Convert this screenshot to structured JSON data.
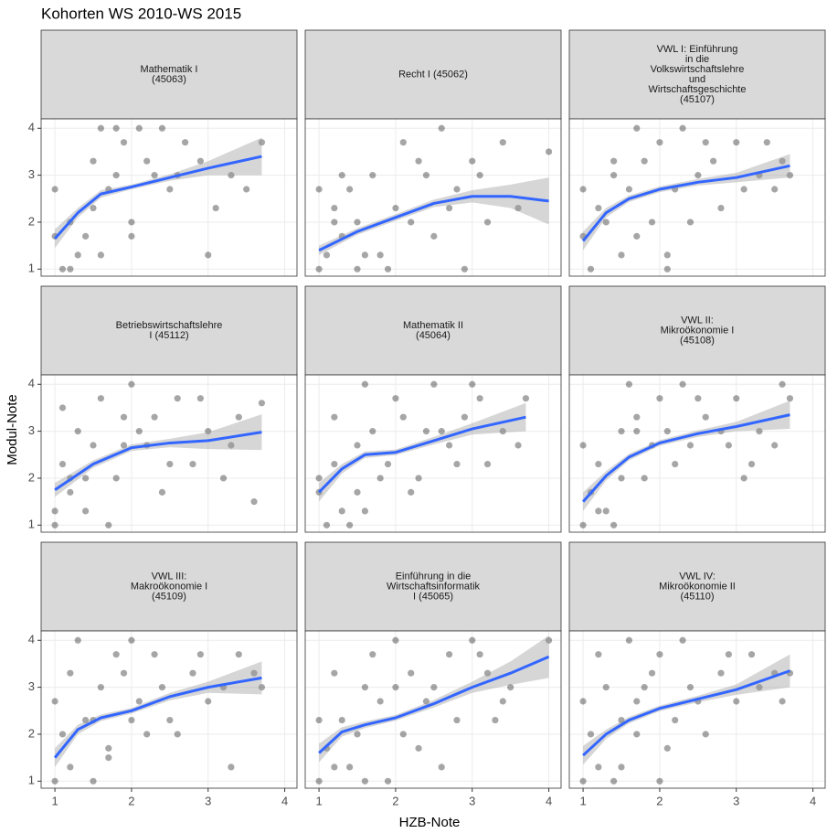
{
  "title": "Kohorten WS 2010-WS 2015",
  "x_label": "HZB-Note",
  "y_label": "Modul-Note",
  "chart_data": [
    {
      "type": "scatter",
      "title_lines": [
        "Mathematik I",
        "(45063)"
      ],
      "xlim": [
        0.82,
        4.16
      ],
      "ylim": [
        0.85,
        4.2
      ],
      "xticks": [
        1,
        2,
        3,
        4
      ],
      "yticks": [
        1,
        2,
        3,
        4
      ],
      "points": {
        "x": [
          1,
          1.1,
          1.2,
          1.3,
          1.5,
          1.6,
          1.7,
          1.8,
          1.9,
          2,
          2.1,
          2.2,
          2.3,
          2.5,
          2.7,
          2.9,
          3.1,
          3.3,
          3.5,
          3.7,
          1.2,
          1.4,
          1.6,
          2.4,
          3,
          1,
          1.5,
          2,
          1.8,
          2.6
        ],
        "y": [
          1.7,
          1,
          2,
          1.3,
          2.3,
          4,
          2.7,
          3,
          3.7,
          2,
          4,
          3.3,
          3,
          2.7,
          3.7,
          3.3,
          2.3,
          3,
          2.7,
          3.7,
          1,
          1.7,
          1.3,
          4,
          1.3,
          2.7,
          3.3,
          1.7,
          4,
          3
        ]
      },
      "smooth": {
        "x": [
          1,
          1.3,
          1.6,
          2,
          2.5,
          3,
          3.7
        ],
        "y": [
          1.65,
          2.2,
          2.6,
          2.75,
          2.95,
          3.15,
          3.4
        ],
        "lower": [
          1.45,
          2.1,
          2.52,
          2.7,
          2.88,
          3.0,
          3.0
        ],
        "upper": [
          1.85,
          2.3,
          2.68,
          2.8,
          3.02,
          3.3,
          3.8
        ],
        "color": "#3366ff"
      }
    },
    {
      "type": "scatter",
      "title_lines": [
        "Recht I (45062)"
      ],
      "xlim": [
        0.82,
        4.16
      ],
      "ylim": [
        0.85,
        4.2
      ],
      "xticks": [
        1,
        2,
        3,
        4
      ],
      "yticks": [
        1,
        2,
        3,
        4
      ],
      "points": {
        "x": [
          1,
          1.1,
          1.2,
          1.3,
          1.4,
          1.5,
          1.7,
          1.8,
          2,
          2.1,
          2.2,
          2.4,
          2.5,
          2.6,
          2.8,
          3,
          3.2,
          3.4,
          3.6,
          4,
          1.2,
          1.6,
          1.9,
          2.3,
          2.7,
          1,
          1.5,
          2.9,
          3.1,
          1.3
        ],
        "y": [
          1,
          1.3,
          2,
          1.7,
          2.7,
          1,
          3,
          1.3,
          2.3,
          3.7,
          2,
          3,
          1.7,
          4,
          2.7,
          3.3,
          2,
          3.7,
          2.3,
          3.5,
          2.3,
          1.3,
          1,
          3.3,
          2.3,
          2.7,
          2,
          1,
          3,
          3
        ]
      },
      "smooth": {
        "x": [
          1,
          1.5,
          2,
          2.5,
          3,
          3.5,
          4
        ],
        "y": [
          1.4,
          1.8,
          2.1,
          2.4,
          2.55,
          2.55,
          2.45
        ],
        "lower": [
          1.3,
          1.73,
          2.03,
          2.32,
          2.42,
          2.3,
          1.95
        ],
        "upper": [
          1.5,
          1.87,
          2.17,
          2.48,
          2.68,
          2.8,
          2.95
        ],
        "color": "#3366ff"
      }
    },
    {
      "type": "scatter",
      "title_lines": [
        "VWL I: Einführung",
        "in die",
        "Volkswirtschaftslehre",
        "und",
        "Wirtschaftsgeschichte",
        "(45107)"
      ],
      "xlim": [
        0.82,
        4.16
      ],
      "ylim": [
        0.85,
        4.2
      ],
      "xticks": [
        1,
        2,
        3,
        4
      ],
      "yticks": [
        1,
        2,
        3,
        4
      ],
      "points": {
        "x": [
          1,
          1.1,
          1.2,
          1.4,
          1.5,
          1.6,
          1.8,
          1.9,
          2,
          2.2,
          2.3,
          2.5,
          2.7,
          2.8,
          3,
          3.1,
          3.3,
          3.5,
          3.6,
          3.7,
          1.3,
          1.7,
          2.1,
          2.6,
          1,
          1.4,
          2.4,
          3.4,
          2.1,
          1.7
        ],
        "y": [
          1.7,
          1,
          2.3,
          3,
          1.3,
          2.7,
          3.3,
          2,
          3.7,
          2.7,
          4,
          3,
          3.3,
          2.3,
          3.7,
          2.7,
          3,
          2.7,
          3.3,
          3,
          2,
          1.7,
          1.3,
          3.7,
          2.7,
          3.3,
          2,
          3.7,
          1,
          4
        ]
      },
      "smooth": {
        "x": [
          1,
          1.3,
          1.6,
          2,
          2.5,
          3,
          3.7
        ],
        "y": [
          1.6,
          2.2,
          2.5,
          2.7,
          2.85,
          2.95,
          3.2
        ],
        "lower": [
          1.4,
          2.1,
          2.43,
          2.64,
          2.78,
          2.85,
          2.95
        ],
        "upper": [
          1.8,
          2.3,
          2.57,
          2.76,
          2.92,
          3.05,
          3.45
        ],
        "color": "#3366ff"
      }
    },
    {
      "type": "scatter",
      "title_lines": [
        "Betriebswirtschaftslehre",
        "I (45112)"
      ],
      "xlim": [
        0.82,
        4.16
      ],
      "ylim": [
        0.85,
        4.2
      ],
      "xticks": [
        1,
        2,
        3,
        4
      ],
      "yticks": [
        1,
        2,
        3,
        4
      ],
      "points": {
        "x": [
          1,
          1.1,
          1.2,
          1.3,
          1.4,
          1.5,
          1.6,
          1.8,
          1.9,
          2,
          2.2,
          2.3,
          2.4,
          2.6,
          2.8,
          3,
          3.2,
          3.4,
          3.6,
          3.7,
          1.1,
          1.7,
          2.1,
          2.5,
          1,
          1.4,
          1.9,
          2.9,
          3.3,
          1.2
        ],
        "y": [
          1,
          2.3,
          1.7,
          3,
          1.3,
          2.7,
          3.7,
          2,
          3.3,
          4,
          2.7,
          3.3,
          1.7,
          3.7,
          2.3,
          3,
          2,
          3.3,
          1.5,
          3.6,
          3.5,
          1,
          3,
          2.3,
          1.3,
          2,
          2.7,
          3.7,
          2.7,
          2
        ]
      },
      "smooth": {
        "x": [
          1,
          1.5,
          2,
          2.5,
          3,
          3.7
        ],
        "y": [
          1.75,
          2.3,
          2.65,
          2.75,
          2.8,
          2.98
        ],
        "lower": [
          1.6,
          2.22,
          2.58,
          2.66,
          2.62,
          2.6
        ],
        "upper": [
          1.9,
          2.38,
          2.72,
          2.84,
          2.98,
          3.36
        ],
        "color": "#3366ff"
      }
    },
    {
      "type": "scatter",
      "title_lines": [
        "Mathematik II",
        "(45064)"
      ],
      "xlim": [
        0.82,
        4.16
      ],
      "ylim": [
        0.85,
        4.2
      ],
      "xticks": [
        1,
        2,
        3,
        4
      ],
      "yticks": [
        1,
        2,
        3,
        4
      ],
      "points": {
        "x": [
          1,
          1.1,
          1.2,
          1.3,
          1.5,
          1.6,
          1.7,
          1.8,
          2,
          2.1,
          2.2,
          2.4,
          2.5,
          2.7,
          2.9,
          3.1,
          3.2,
          3.4,
          3.6,
          3.7,
          1.4,
          1.9,
          2.3,
          1,
          1.2,
          1.6,
          2.6,
          3,
          2.8,
          1.5
        ],
        "y": [
          1.7,
          1,
          2.3,
          1.3,
          2.7,
          4,
          3,
          2,
          3.7,
          3.3,
          1.7,
          3,
          4,
          2.7,
          3.3,
          3.7,
          2.3,
          3,
          2.7,
          3.7,
          1,
          2.3,
          2,
          2,
          3.3,
          1.3,
          3,
          4,
          2.3,
          1.7
        ]
      },
      "smooth": {
        "x": [
          1,
          1.3,
          1.6,
          2,
          2.5,
          3,
          3.7
        ],
        "y": [
          1.7,
          2.2,
          2.5,
          2.55,
          2.8,
          3.05,
          3.3
        ],
        "lower": [
          1.5,
          2.1,
          2.43,
          2.49,
          2.72,
          2.93,
          3.0
        ],
        "upper": [
          1.9,
          2.3,
          2.57,
          2.61,
          2.88,
          3.17,
          3.6
        ],
        "color": "#3366ff"
      }
    },
    {
      "type": "scatter",
      "title_lines": [
        "VWL II:",
        "Mikroökonomie I",
        "(45108)"
      ],
      "xlim": [
        0.82,
        4.16
      ],
      "ylim": [
        0.85,
        4.2
      ],
      "xticks": [
        1,
        2,
        3,
        4
      ],
      "yticks": [
        1,
        2,
        3,
        4
      ],
      "points": {
        "x": [
          1,
          1.1,
          1.2,
          1.3,
          1.5,
          1.6,
          1.7,
          1.9,
          2,
          2.1,
          2.3,
          2.4,
          2.6,
          2.8,
          3,
          3.2,
          3.3,
          3.5,
          3.6,
          3.7,
          1.4,
          1.8,
          2.2,
          1,
          1.5,
          2.5,
          2.9,
          3.1,
          1.2,
          1.7
        ],
        "y": [
          1,
          1.7,
          2.3,
          1.3,
          2,
          4,
          3.3,
          2.7,
          3.7,
          3,
          4,
          2.7,
          3.3,
          3,
          3.7,
          2.3,
          3,
          2.7,
          4,
          3.7,
          1,
          2,
          2.3,
          2.7,
          3,
          3.7,
          2.7,
          2,
          1.3,
          3
        ]
      },
      "smooth": {
        "x": [
          1,
          1.3,
          1.6,
          2,
          2.5,
          3,
          3.7
        ],
        "y": [
          1.5,
          2.05,
          2.45,
          2.75,
          2.95,
          3.1,
          3.35
        ],
        "lower": [
          1.3,
          1.95,
          2.38,
          2.69,
          2.88,
          3.0,
          3.05
        ],
        "upper": [
          1.7,
          2.15,
          2.52,
          2.81,
          3.02,
          3.2,
          3.65
        ],
        "color": "#3366ff"
      }
    },
    {
      "type": "scatter",
      "title_lines": [
        "VWL III:",
        "Makroökonomie I",
        "(45109)"
      ],
      "xlim": [
        0.82,
        4.16
      ],
      "ylim": [
        0.85,
        4.2
      ],
      "xticks": [
        1,
        2,
        3,
        4
      ],
      "yticks": [
        1,
        2,
        3,
        4
      ],
      "points": {
        "x": [
          1,
          1.1,
          1.2,
          1.3,
          1.5,
          1.6,
          1.7,
          1.9,
          2,
          2.1,
          2.3,
          2.4,
          2.6,
          2.8,
          3,
          3.2,
          3.4,
          3.6,
          3.7,
          1.4,
          1.8,
          2.2,
          1,
          1.5,
          2.5,
          2.9,
          1.2,
          1.7,
          2,
          3.3
        ],
        "y": [
          1,
          2,
          1.3,
          4,
          2.3,
          3,
          1.7,
          3.3,
          4,
          2.7,
          3.7,
          3,
          2,
          3.3,
          2.7,
          3,
          3.7,
          3.3,
          3,
          2.3,
          3.7,
          2,
          2.7,
          1,
          2.3,
          3.7,
          3.3,
          1.5,
          2.3,
          1.3
        ]
      },
      "smooth": {
        "x": [
          1,
          1.3,
          1.6,
          2,
          2.5,
          3,
          3.7
        ],
        "y": [
          1.5,
          2.1,
          2.35,
          2.5,
          2.8,
          3,
          3.2
        ],
        "lower": [
          1.3,
          2.0,
          2.28,
          2.44,
          2.72,
          2.88,
          2.85
        ],
        "upper": [
          1.7,
          2.2,
          2.42,
          2.56,
          2.88,
          3.12,
          3.55
        ],
        "color": "#3366ff"
      }
    },
    {
      "type": "scatter",
      "title_lines": [
        "Einführung in die",
        "Wirtschaftsinformatik",
        "I (45065)"
      ],
      "xlim": [
        0.82,
        4.16
      ],
      "ylim": [
        0.85,
        4.2
      ],
      "xticks": [
        1,
        2,
        3,
        4
      ],
      "yticks": [
        1,
        2,
        3,
        4
      ],
      "points": {
        "x": [
          1,
          1.1,
          1.2,
          1.3,
          1.5,
          1.6,
          1.8,
          1.9,
          2,
          2.2,
          2.3,
          2.5,
          2.7,
          2.8,
          3,
          3.2,
          3.4,
          3.5,
          4,
          1.4,
          1.7,
          2.1,
          1,
          1.2,
          2.4,
          2.6,
          3.1,
          3.3,
          1.6,
          2
        ],
        "y": [
          1,
          1.7,
          1.3,
          2.3,
          2,
          3,
          2.7,
          1,
          4,
          3.3,
          1.7,
          3,
          3.7,
          2.3,
          4,
          3.3,
          2.7,
          3,
          4,
          1.3,
          3.7,
          2,
          2.3,
          3.3,
          2.7,
          1.3,
          3.7,
          2.3,
          1,
          3
        ]
      },
      "smooth": {
        "x": [
          1,
          1.3,
          1.6,
          2,
          2.5,
          3,
          3.5,
          4
        ],
        "y": [
          1.6,
          2.05,
          2.2,
          2.35,
          2.65,
          3,
          3.3,
          3.65
        ],
        "lower": [
          1.4,
          1.95,
          2.13,
          2.29,
          2.57,
          2.88,
          3.05,
          3.2
        ],
        "upper": [
          1.8,
          2.15,
          2.27,
          2.41,
          2.73,
          3.12,
          3.55,
          4.1
        ],
        "color": "#3366ff"
      }
    },
    {
      "type": "scatter",
      "title_lines": [
        "VWL IV:",
        "Mikroökonomie II",
        "(45110)"
      ],
      "xlim": [
        0.82,
        4.16
      ],
      "ylim": [
        0.85,
        4.2
      ],
      "xticks": [
        1,
        2,
        3,
        4
      ],
      "yticks": [
        1,
        2,
        3,
        4
      ],
      "points": {
        "x": [
          1,
          1.1,
          1.2,
          1.3,
          1.5,
          1.6,
          1.7,
          1.9,
          2,
          2.1,
          2.3,
          2.4,
          2.6,
          2.8,
          3,
          3.2,
          3.3,
          3.5,
          3.7,
          1.4,
          1.8,
          2.2,
          1,
          1.5,
          2.5,
          2.9,
          1.2,
          1.7,
          3.6,
          2
        ],
        "y": [
          1,
          2,
          1.3,
          3,
          2.3,
          4,
          2.7,
          3.3,
          3.7,
          1.7,
          4,
          3,
          2,
          3.3,
          2.7,
          3.7,
          3,
          3.3,
          3.3,
          1,
          3,
          2.3,
          2.7,
          1.3,
          2.7,
          3.7,
          3.7,
          2,
          2.7,
          1
        ]
      },
      "smooth": {
        "x": [
          1,
          1.3,
          1.6,
          2,
          2.5,
          3,
          3.7
        ],
        "y": [
          1.55,
          2,
          2.3,
          2.55,
          2.75,
          2.95,
          3.35
        ],
        "lower": [
          1.35,
          1.9,
          2.23,
          2.49,
          2.68,
          2.84,
          3.0
        ],
        "upper": [
          1.75,
          2.1,
          2.37,
          2.61,
          2.82,
          3.06,
          3.7
        ],
        "color": "#3366ff"
      }
    }
  ]
}
